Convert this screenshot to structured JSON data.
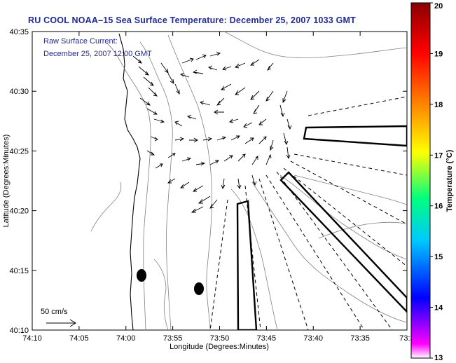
{
  "title": "RU COOL  NOAA–15  Sea Surface Temperature:  December 25, 2007 1033 GMT",
  "inset": {
    "line1": "Raw Surface Current:",
    "line2": "December 25, 2007 12:00 GMT"
  },
  "scale_label": "50 cm/s",
  "x_axis": {
    "label": "Longitude (Degrees:Minutes)",
    "ticks": [
      "74:10",
      "74:05",
      "74:00",
      "73:55",
      "73:50",
      "73:45",
      "73:40",
      "73:35",
      "73:3"
    ]
  },
  "y_axis": {
    "label": "Latitude (Degrees:Minutes)",
    "ticks": [
      "40:35",
      "40:30",
      "40:25",
      "40:20",
      "40:15",
      "40:10"
    ]
  },
  "colorbar": {
    "label": "Temperature (°C)",
    "min": 13,
    "max": 20,
    "ticks": [
      "20",
      "19",
      "18",
      "17",
      "16",
      "15",
      "14",
      "13"
    ],
    "colors": [
      "#ff00ff",
      "#0000ff",
      "#00c8ff",
      "#00ff80",
      "#ffff00",
      "#ff8000",
      "#ff0000",
      "#8b0000"
    ]
  },
  "colors": {
    "title": "#1f2a9c",
    "inset_text": "#1f2a9c"
  }
}
